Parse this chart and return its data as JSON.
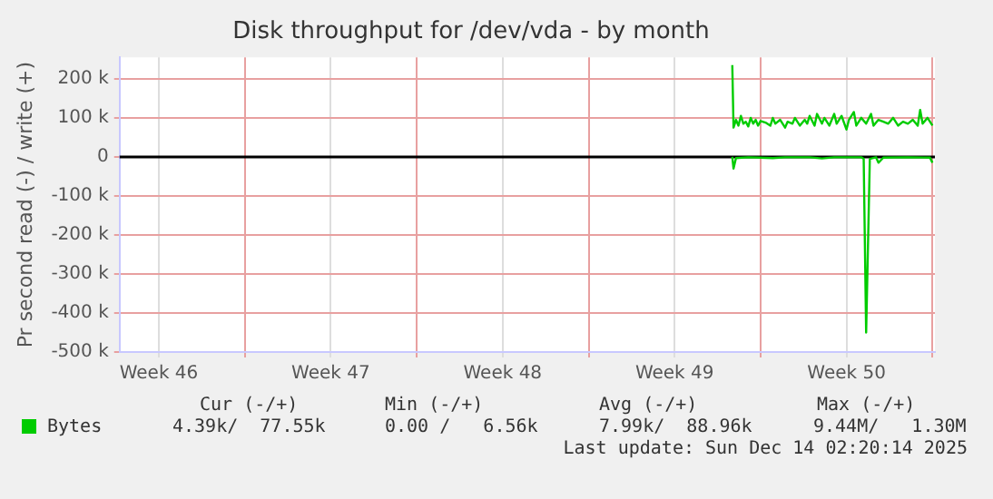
{
  "chart_data": {
    "type": "line",
    "title": "Disk throughput for /dev/vda - by month",
    "ylabel": "Pr second read (-) / write (+)",
    "xlim": [
      "2025-11-10T21:36",
      "2025-12-14T02:24"
    ],
    "xticks": [
      {
        "value": "2025-11-12T12:00",
        "label": "Week 46"
      },
      {
        "value": "2025-11-16",
        "label": null
      },
      {
        "value": "2025-11-19T12:00",
        "label": "Week 47"
      },
      {
        "value": "2025-11-23",
        "label": null
      },
      {
        "value": "2025-11-26T12:00",
        "label": "Week 48"
      },
      {
        "value": "2025-11-30",
        "label": null
      },
      {
        "value": "2025-12-03T12:00",
        "label": "Week 49"
      },
      {
        "value": "2025-12-07",
        "label": null
      },
      {
        "value": "2025-12-10T12:00",
        "label": "Week 50"
      },
      {
        "value": "2025-12-14",
        "label": null
      }
    ],
    "ylim": [
      -500000,
      255000
    ],
    "yticks": [
      {
        "value": -500000,
        "label": "-500 k"
      },
      {
        "value": -400000,
        "label": "-400 k"
      },
      {
        "value": -300000,
        "label": "-300 k"
      },
      {
        "value": -200000,
        "label": "-200 k"
      },
      {
        "value": -100000,
        "label": "-100 k"
      },
      0,
      {
        "value": 100000,
        "label": "100 k"
      },
      {
        "value": 200000,
        "label": "200 k"
      }
    ],
    "grid": true,
    "legend": "bottom left",
    "marker": "none",
    "line_style": "solid",
    "ref_lines": [
      {
        "axis": "y",
        "value": 0,
        "color": "#000000"
      }
    ],
    "series": [
      {
        "name": "Bytes",
        "color": "#00cc00",
        "x": [
          "2025-12-05T20:24",
          "2025-12-05T21:36",
          "2025-12-06T00:00",
          "2025-12-06T02:24",
          "2025-12-06T04:48",
          "2025-12-06T07:12",
          "2025-12-06T09:36",
          "2025-12-06T12:00",
          "2025-12-06T14:24",
          "2025-12-06T16:48",
          "2025-12-06T19:12",
          "2025-12-06T21:36",
          "2025-12-07T00:00",
          "2025-12-07T04:48",
          "2025-12-07T09:36",
          "2025-12-07T12:00",
          "2025-12-07T14:24",
          "2025-12-07T19:12",
          "2025-12-08T00:00",
          "2025-12-08T02:24",
          "2025-12-08T07:12",
          "2025-12-08T09:36",
          "2025-12-08T14:24",
          "2025-12-08T19:12",
          "2025-12-08T21:36",
          "2025-12-09T00:00",
          "2025-12-09T04:48",
          "2025-12-09T07:12",
          "2025-12-09T12:00",
          "2025-12-09T14:24",
          "2025-12-09T19:12",
          "2025-12-10T00:00",
          "2025-12-10T02:24",
          "2025-12-10T07:12",
          "2025-12-10T12:00",
          "2025-12-10T14:24",
          "2025-12-10T19:12",
          "2025-12-10T21:36",
          "2025-12-11T02:24",
          "2025-12-11T07:12",
          "2025-12-11T12:00",
          "2025-12-11T14:24",
          "2025-12-11T19:12",
          "2025-12-12T00:00",
          "2025-12-12T04:48",
          "2025-12-12T09:36",
          "2025-12-12T14:24",
          "2025-12-12T19:12",
          "2025-12-13T00:00",
          "2025-12-13T04:48",
          "2025-12-13T09:36",
          "2025-12-13T12:00",
          "2025-12-13T14:24",
          "2025-12-13T19:12",
          "2025-12-14T00:00"
        ],
        "values": [
          235000,
          75000,
          95000,
          80000,
          105000,
          85000,
          90000,
          78000,
          100000,
          85000,
          95000,
          80000,
          92000,
          88000,
          80000,
          100000,
          85000,
          95000,
          75000,
          90000,
          85000,
          100000,
          80000,
          95000,
          85000,
          105000,
          80000,
          110000,
          85000,
          100000,
          80000,
          110000,
          85000,
          105000,
          70000,
          95000,
          115000,
          80000,
          100000,
          85000,
          110000,
          80000,
          95000,
          90000,
          85000,
          100000,
          80000,
          90000,
          85000,
          95000,
          80000,
          120000,
          85000,
          100000,
          80000
        ]
      },
      {
        "color": "#00cc00",
        "x": [
          "2025-12-05T20:24",
          "2025-12-05T21:36",
          "2025-12-06T00:00",
          "2025-12-06T12:00",
          "2025-12-07T12:00",
          "2025-12-08T00:00",
          "2025-12-09T00:00",
          "2025-12-09T12:00",
          "2025-12-10T00:00",
          "2025-12-11T02:24",
          "2025-12-11T04:48",
          "2025-12-11T07:12",
          "2025-12-11T10:48",
          "2025-12-11T16:48",
          "2025-12-11T19:12",
          "2025-12-12T00:00",
          "2025-12-13T00:00",
          "2025-12-13T21:36",
          "2025-12-14T00:00"
        ],
        "values": [
          0,
          -30000,
          -3000,
          -1000,
          -3000,
          -1000,
          -1000,
          -4000,
          -1000,
          -1000,
          -5000,
          -450000,
          -5000,
          -1000,
          -15000,
          -2000,
          -1000,
          -2000,
          -15000
        ]
      }
    ],
    "annotations": [
      "Cur (-/+)",
      "Min (-/+)",
      "Avg (-/+)",
      "Max (-/+)",
      "4.39k/  77.55k",
      "0.00 /   6.56k",
      "7.99k/  88.96k",
      "9.44M/   1.30M",
      "Last update: Sun Dec 14 02:20:14 2025"
    ]
  }
}
